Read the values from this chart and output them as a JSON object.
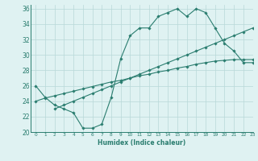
{
  "line1_x": [
    0,
    1,
    2,
    3,
    4,
    5,
    6,
    7,
    8,
    9,
    10,
    11,
    12,
    13,
    14,
    15,
    16,
    17,
    18,
    19,
    20,
    21,
    22,
    23
  ],
  "line1_y": [
    26.0,
    24.5,
    23.5,
    23.0,
    22.5,
    20.5,
    20.5,
    21.0,
    24.5,
    29.5,
    32.5,
    33.5,
    33.5,
    35.0,
    35.5,
    36.0,
    35.0,
    36.0,
    35.5,
    33.5,
    31.5,
    30.5,
    29.0,
    29.0
  ],
  "line2_x": [
    2,
    3,
    4,
    5,
    6,
    7,
    8,
    9,
    10,
    11,
    12,
    13,
    14,
    15,
    16,
    17,
    18,
    19,
    20,
    21,
    22,
    23
  ],
  "line2_y": [
    23.0,
    23.5,
    24.0,
    24.5,
    25.0,
    25.5,
    26.0,
    26.5,
    27.0,
    27.5,
    28.0,
    28.5,
    29.0,
    29.5,
    30.0,
    30.5,
    31.0,
    31.5,
    32.0,
    32.5,
    33.0,
    33.5
  ],
  "line3_x": [
    0,
    1,
    2,
    3,
    4,
    5,
    6,
    7,
    8,
    9,
    10,
    11,
    12,
    13,
    14,
    15,
    16,
    17,
    18,
    19,
    20,
    21,
    22,
    23
  ],
  "line3_y": [
    24.0,
    24.4,
    24.7,
    25.0,
    25.3,
    25.6,
    25.9,
    26.2,
    26.5,
    26.7,
    27.0,
    27.3,
    27.5,
    27.8,
    28.0,
    28.3,
    28.5,
    28.8,
    29.0,
    29.2,
    29.3,
    29.4,
    29.4,
    29.4
  ],
  "color": "#2a7d6f",
  "bg_color": "#dff2f2",
  "grid_color": "#b8d8d8",
  "xlabel": "Humidex (Indice chaleur)",
  "xlim": [
    -0.5,
    23
  ],
  "ylim": [
    20,
    36.5
  ],
  "xticks": [
    0,
    1,
    2,
    3,
    4,
    5,
    6,
    7,
    8,
    9,
    10,
    11,
    12,
    13,
    14,
    15,
    16,
    17,
    18,
    19,
    20,
    21,
    22,
    23
  ],
  "yticks": [
    20,
    22,
    24,
    26,
    28,
    30,
    32,
    34,
    36
  ],
  "marker": "D",
  "markersize": 1.8,
  "linewidth": 0.8
}
